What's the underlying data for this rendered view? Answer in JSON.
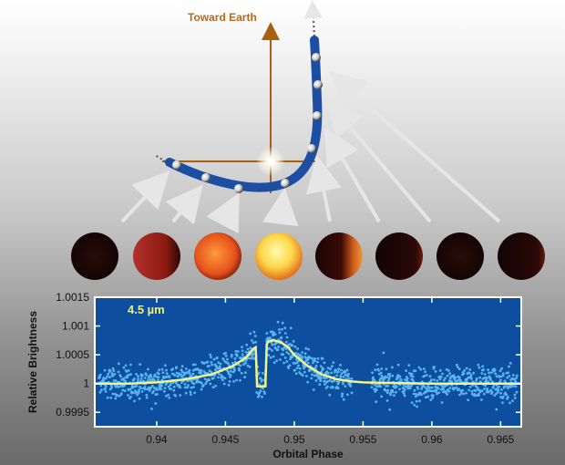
{
  "diagram": {
    "earth_label": "Toward Earth",
    "colors": {
      "orbit": "#1c4fa3",
      "axis": "#a86010",
      "arrow": "#e6e6e6"
    }
  },
  "chart_data": {
    "type": "scatter",
    "title": "",
    "band_label": "4.5 µm",
    "xlabel": "Orbital Phase",
    "ylabel": "Relative Brightness",
    "xlim": [
      0.9355,
      0.9665
    ],
    "ylim": [
      0.99925,
      1.0015
    ],
    "x_ticks": [
      0.94,
      0.945,
      0.95,
      0.955,
      0.96,
      0.965
    ],
    "x_tick_labels": [
      "0.94",
      "0.945",
      "0.95",
      "0.955",
      "0.96",
      "0.965"
    ],
    "y_ticks": [
      0.9995,
      1.0,
      1.0005,
      1.001,
      1.0015
    ],
    "y_tick_labels": [
      "0.9995",
      "1",
      "1.0005",
      "1.001",
      "1.0015"
    ],
    "grid": false,
    "colors": {
      "background": "#0d4f9e",
      "points": "#58b4ef",
      "model": "#f2f48c",
      "frame": "#ffffff"
    },
    "gaps": [
      [
        0.9542,
        0.9556
      ]
    ],
    "model": {
      "x": [
        0.9355,
        0.938,
        0.94,
        0.942,
        0.944,
        0.9455,
        0.9465,
        0.947,
        0.9472,
        0.9473,
        0.9479,
        0.948,
        0.9481,
        0.9485,
        0.949,
        0.9495,
        0.95,
        0.951,
        0.952,
        0.953,
        0.954,
        0.955,
        0.957,
        0.96,
        0.9665
      ],
      "y": [
        1.0,
        1.0,
        1.00002,
        1.00007,
        1.00016,
        1.0003,
        1.00045,
        1.0006,
        1.00063,
        0.99995,
        0.99995,
        1.00068,
        1.00073,
        1.00075,
        1.00072,
        1.00064,
        1.0005,
        1.0003,
        1.00016,
        1.00008,
        1.00004,
        1.00002,
        1.00001,
        1.0,
        1.0
      ]
    }
  }
}
